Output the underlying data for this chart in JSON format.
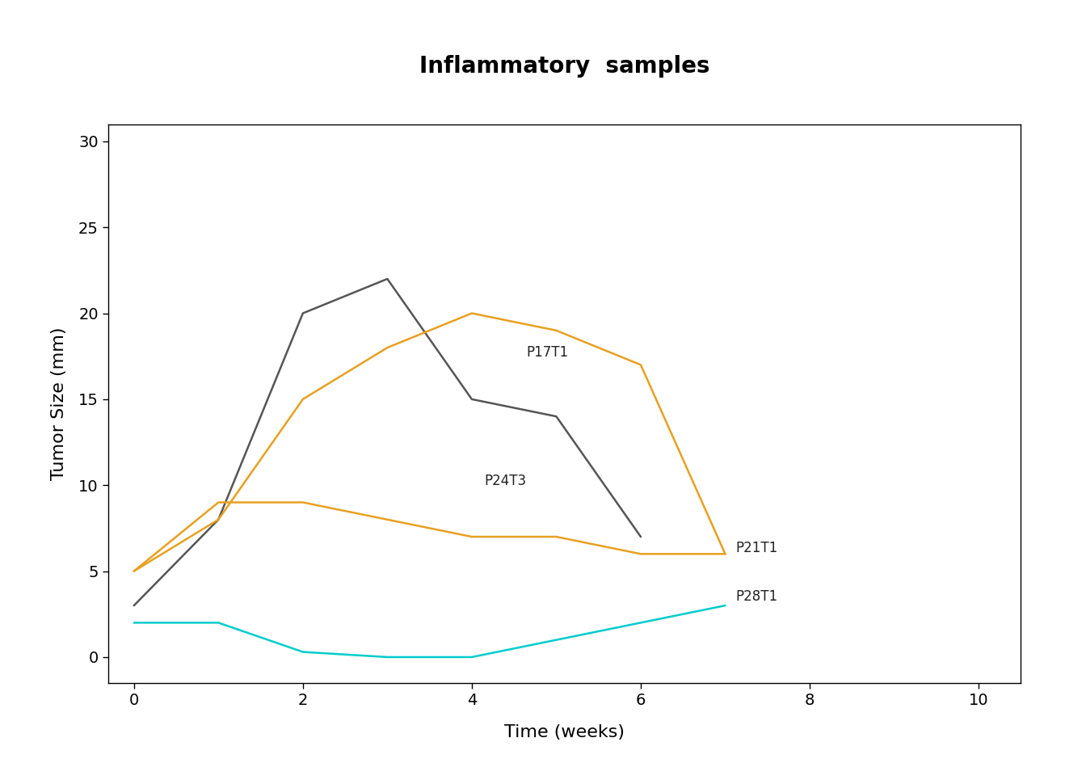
{
  "title": "Inflammatory  samples",
  "xlabel": "Time (weeks)",
  "ylabel": "Tumor Size (mm)",
  "xlim": [
    -0.3,
    10.5
  ],
  "ylim": [
    -1.5,
    31
  ],
  "xticks": [
    0,
    2,
    4,
    6,
    8,
    10
  ],
  "yticks": [
    0,
    5,
    10,
    15,
    20,
    25,
    30
  ],
  "series": [
    {
      "x": [
        0,
        1,
        2,
        3,
        4,
        5,
        6
      ],
      "y": [
        3,
        8,
        20,
        22,
        15,
        14,
        7
      ],
      "color": "#555555",
      "lw": 1.8,
      "annotation": "P24T3",
      "ann_x": 4.15,
      "ann_y": 10.0
    },
    {
      "x": [
        0,
        1,
        2,
        3,
        4,
        5,
        6,
        7
      ],
      "y": [
        5,
        8,
        15,
        18,
        20,
        19,
        17,
        6
      ],
      "color": "#E8A020",
      "lw": 1.8,
      "annotation": "P17T1",
      "ann_x": 4.65,
      "ann_y": 17.5
    },
    {
      "x": [
        0,
        1,
        2,
        3,
        4,
        5,
        6,
        7
      ],
      "y": [
        5,
        9,
        9,
        8,
        7,
        7,
        6,
        6
      ],
      "color": "#E8A020",
      "lw": 1.8,
      "annotation": "P21T1",
      "ann_x": 7.12,
      "ann_y": 6.1
    },
    {
      "x": [
        0,
        1,
        2,
        3,
        4,
        5,
        6,
        7
      ],
      "y": [
        2,
        2,
        0.3,
        0,
        0,
        1,
        2,
        3
      ],
      "color": "#00CCCC",
      "lw": 1.8,
      "annotation": "P28T1",
      "ann_x": 7.12,
      "ann_y": 3.3
    }
  ],
  "background_color": "#ffffff",
  "title_fontsize": 20,
  "label_fontsize": 16,
  "tick_fontsize": 14,
  "annotation_fontsize": 12
}
